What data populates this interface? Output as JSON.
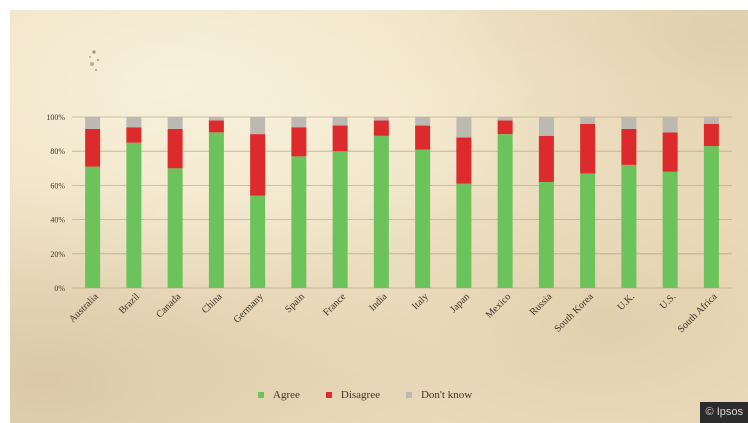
{
  "credit": "© Ipsos",
  "colors": {
    "agree": "#6cc35b",
    "disagree": "#dd2a2d",
    "dont_know": "#bcb9b3",
    "grid": "#a99a7c",
    "axis_text": "#3e3528"
  },
  "legend": [
    {
      "label": "Agree",
      "color": "#6cc35b"
    },
    {
      "label": "Disagree",
      "color": "#dd2a2d"
    },
    {
      "label": "Don't know",
      "color": "#bcb9b3"
    }
  ],
  "chart_data": {
    "type": "bar",
    "stacked": true,
    "title": "",
    "xlabel": "",
    "ylabel": "",
    "ylim": [
      0,
      100
    ],
    "yticks": [
      "0%",
      "20%",
      "40%",
      "60%",
      "80%",
      "100%"
    ],
    "grid": true,
    "legend_position": "bottom",
    "categories": [
      "Australia",
      "Brazil",
      "Canada",
      "China",
      "Germany",
      "Spain",
      "France",
      "India",
      "Italy",
      "Japan",
      "Mexico",
      "Russia",
      "South Korea",
      "U.K.",
      "U.S.",
      "South Africa"
    ],
    "series": [
      {
        "name": "Agree",
        "values": [
          71,
          85,
          70,
          91,
          54,
          77,
          80,
          89,
          81,
          61,
          90,
          62,
          67,
          72,
          68,
          83
        ]
      },
      {
        "name": "Disagree",
        "values": [
          22,
          9,
          23,
          7,
          36,
          17,
          15,
          9,
          14,
          27,
          8,
          27,
          29,
          21,
          23,
          13
        ]
      },
      {
        "name": "Don't know",
        "values": [
          7,
          6,
          7,
          2,
          10,
          6,
          5,
          2,
          5,
          12,
          2,
          11,
          4,
          7,
          9,
          4
        ]
      }
    ]
  }
}
